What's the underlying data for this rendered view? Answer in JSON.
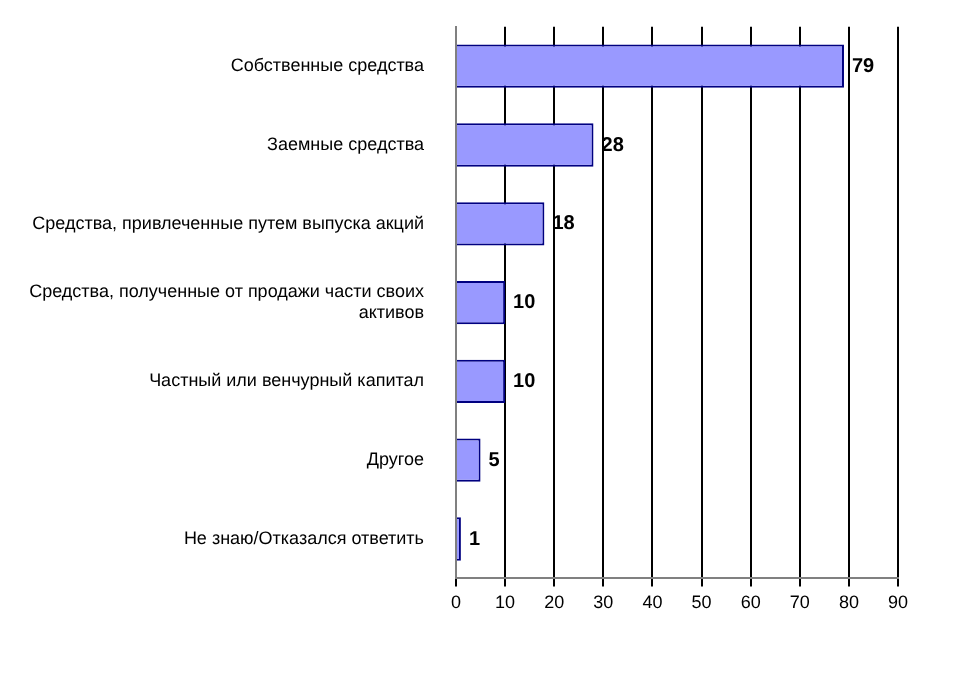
{
  "chart_data": {
    "type": "bar",
    "orientation": "horizontal",
    "categories": [
      "Собственные средства",
      "Заемные средства",
      "Средства, привлеченные путем выпуска акций",
      "Средства, полученные от продажи части своих активов",
      "Частный или венчурный капитал",
      "Другое",
      "Не знаю/Отказался ответить"
    ],
    "values": [
      79,
      28,
      18,
      10,
      10,
      5,
      1
    ],
    "color": "#9999ff",
    "xlim": [
      0,
      90
    ],
    "xticks": [
      0,
      10,
      20,
      30,
      40,
      50,
      60,
      70,
      80,
      90
    ],
    "grid": "x",
    "data_labels": true,
    "legend": false
  }
}
